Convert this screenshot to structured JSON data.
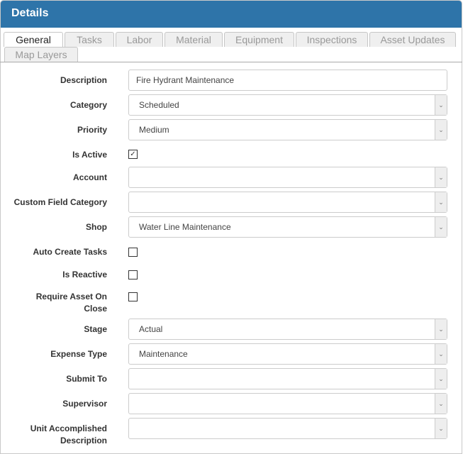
{
  "header": {
    "title": "Details"
  },
  "tabs": [
    "General",
    "Tasks",
    "Labor",
    "Material",
    "Equipment",
    "Inspections",
    "Asset Updates",
    "Map Layers"
  ],
  "active_tab": "General",
  "fields": {
    "description": {
      "label": "Description",
      "value": "Fire Hydrant Maintenance"
    },
    "category": {
      "label": "Category",
      "value": "Scheduled"
    },
    "priority": {
      "label": "Priority",
      "value": "Medium"
    },
    "is_active": {
      "label": "Is Active",
      "checked": true
    },
    "account": {
      "label": "Account",
      "value": ""
    },
    "custom_field_category": {
      "label": "Custom Field Category",
      "value": ""
    },
    "shop": {
      "label": "Shop",
      "value": "Water Line Maintenance"
    },
    "auto_create_tasks": {
      "label": "Auto Create Tasks",
      "checked": false
    },
    "is_reactive": {
      "label": "Is Reactive",
      "checked": false
    },
    "require_asset_on_close": {
      "label": "Require Asset On Close",
      "checked": false
    },
    "stage": {
      "label": "Stage",
      "value": "Actual"
    },
    "expense_type": {
      "label": "Expense Type",
      "value": "Maintenance"
    },
    "submit_to": {
      "label": "Submit To",
      "value": ""
    },
    "supervisor": {
      "label": "Supervisor",
      "value": ""
    },
    "unit_accomplished_description": {
      "label": "Unit Accomplished Description",
      "value": ""
    }
  },
  "icons": {
    "dropdown": "chevron-down-icon",
    "check": "checkmark-icon"
  },
  "colors": {
    "header": "#2e74a9"
  }
}
